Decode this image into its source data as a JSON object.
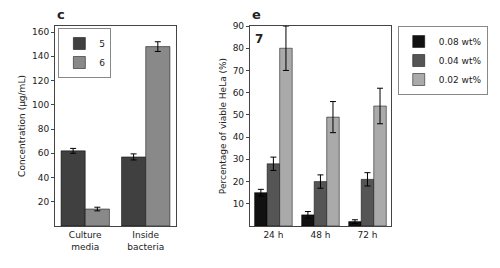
{
  "chart_data": [
    {
      "type": "bar",
      "title": "c",
      "categories": [
        "Culture\nmedia",
        "Inside\nbacteria"
      ],
      "series": [
        {
          "name": "5",
          "color": "#404040",
          "values": [
            62,
            57
          ],
          "errors": [
            2.0,
            2.5
          ]
        },
        {
          "name": "6",
          "color": "#898989",
          "values": [
            14,
            148
          ],
          "errors": [
            1.5,
            4
          ]
        }
      ],
      "ylabel": "Concentration (µg/mL)",
      "ylim": [
        0,
        165
      ],
      "yticks": [
        20,
        40,
        60,
        80,
        100,
        120,
        140,
        160
      ],
      "grid": false,
      "legend": "upper left"
    },
    {
      "type": "bar",
      "title": "e",
      "annotations": [
        "7"
      ],
      "categories": [
        "24 h",
        "48 h",
        "72 h"
      ],
      "series": [
        {
          "name": "0.08 wt%",
          "color": "#111111",
          "values": [
            15,
            5,
            2
          ],
          "errors": [
            1.5,
            1.5,
            0.8
          ]
        },
        {
          "name": "0.04 wt%",
          "color": "#555555",
          "values": [
            28,
            20,
            21
          ],
          "errors": [
            3,
            3,
            3
          ]
        },
        {
          "name": "0.02 wt%",
          "color": "#aaaaaa",
          "values": [
            80,
            49,
            54
          ],
          "errors": [
            10,
            7,
            8
          ]
        }
      ],
      "ylabel": "Percentage of viable HeLa (%)",
      "ylim": [
        0,
        90
      ],
      "yticks": [
        10,
        20,
        30,
        40,
        50,
        60,
        70,
        80,
        90
      ],
      "grid": false,
      "legend": "upper right"
    }
  ]
}
